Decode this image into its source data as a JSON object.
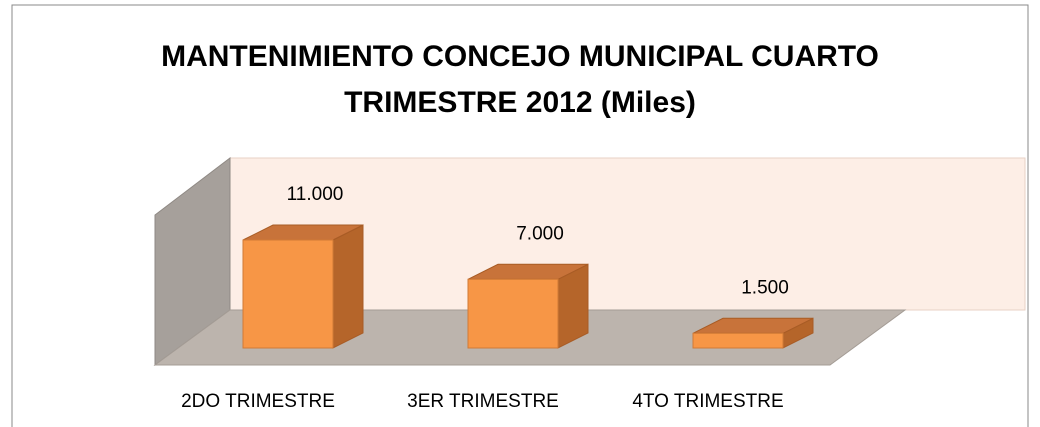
{
  "chart_data": {
    "type": "bar3d",
    "title": [
      "MANTENIMIENTO CONCEJO MUNICIPAL CUARTO",
      "TRIMESTRE 2012 (Miles)"
    ],
    "categories": [
      "2DO TRIMESTRE",
      "3ER TRIMESTRE",
      "4TO TRIMESTRE"
    ],
    "values": [
      11000,
      7000,
      1500
    ],
    "value_labels": [
      "11.000",
      "7.000",
      "1.500"
    ],
    "color": "#f79646"
  }
}
